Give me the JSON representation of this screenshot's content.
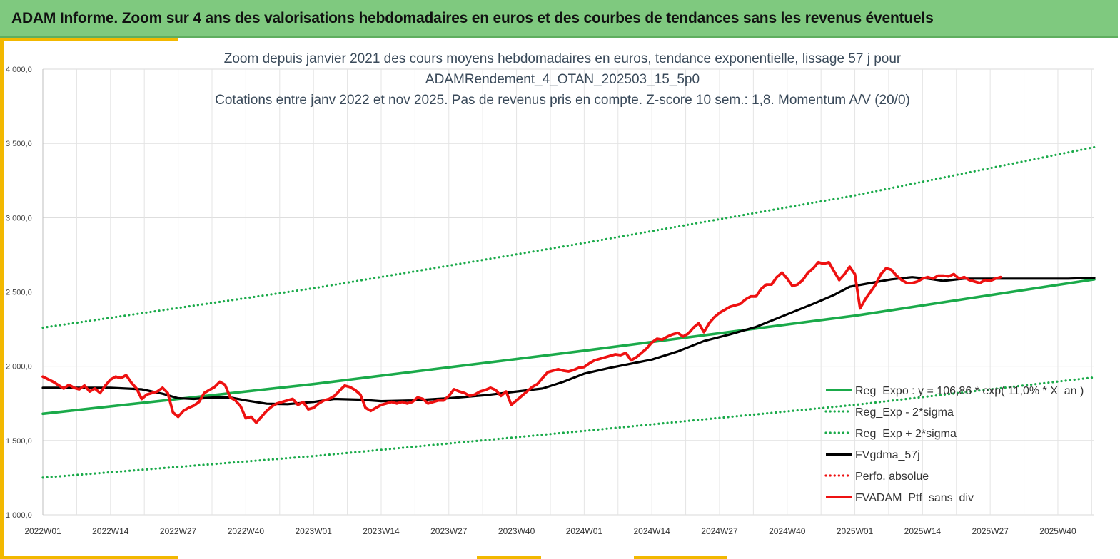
{
  "header": {
    "title": "ADAM Informe. Zoom sur 4 ans des valorisations hebdomadaires en euros et des courbes de tendances sans les revenus éventuels"
  },
  "colors": {
    "header_bg": "#7fc97f",
    "accent": "#f2b800",
    "green": "#1aaa4a",
    "red": "#ee1111",
    "black": "#000000"
  },
  "chart_data": {
    "type": "line",
    "title_lines": [
      "Zoom depuis janvier 2021 des cours moyens hebdomadaires  en euros, tendance exponentielle, lissage 57 j pour",
      "ADAMRendement_4_OTAN_202503_15_5p0",
      "Cotations entre janv 2022 et nov 2025. Pas de revenus pris en compte. Z-score 10 sem.: 1,8. Momentum A/V (20/0)"
    ],
    "ylim": [
      1000,
      4000
    ],
    "yticks": [
      1000,
      1500,
      2000,
      2500,
      3000,
      3500,
      4000
    ],
    "ytick_labels": [
      "1 000,0",
      "1 500,0",
      "2 000,0",
      "2 500,0",
      "3 000,0",
      "3 500,0",
      "4 000,0"
    ],
    "x_range_weeks": [
      1,
      203
    ],
    "xticks": [
      1,
      14,
      27,
      40,
      53,
      66,
      79,
      92,
      105,
      118,
      131,
      144,
      157,
      170,
      183,
      196
    ],
    "xtick_labels": [
      "2022W01",
      "2022W14",
      "2022W27",
      "2022W40",
      "2023W01",
      "2023W14",
      "2023W27",
      "2023W40",
      "2024W01",
      "2024W14",
      "2024W27",
      "2024W40",
      "2025W01",
      "2025W14",
      "2025W27",
      "2025W40"
    ],
    "grid": true,
    "legend_position": "bottom-right",
    "series": [
      {
        "name": "Reg_Expo : y = 106,86 * exp( 11,0% *  X_an )",
        "style": "solid",
        "color": "#1aaa4a",
        "points": [
          [
            1,
            1680
          ],
          [
            53,
            1880
          ],
          [
            105,
            2105
          ],
          [
            157,
            2340
          ],
          [
            203,
            2585
          ]
        ]
      },
      {
        "name": "Reg_Exp - 2*sigma",
        "style": "dotted",
        "color": "#1aaa4a",
        "points": [
          [
            1,
            1250
          ],
          [
            53,
            1395
          ],
          [
            105,
            1565
          ],
          [
            157,
            1740
          ],
          [
            203,
            1925
          ]
        ]
      },
      {
        "name": "Reg_Exp + 2*sigma",
        "style": "dotted",
        "color": "#1aaa4a",
        "points": [
          [
            1,
            2260
          ],
          [
            53,
            2525
          ],
          [
            105,
            2830
          ],
          [
            157,
            3150
          ],
          [
            203,
            3475
          ]
        ]
      },
      {
        "name": "FVgdma_57j",
        "style": "solid",
        "color": "#000000",
        "points": [
          [
            1,
            1855
          ],
          [
            8,
            1855
          ],
          [
            14,
            1855
          ],
          [
            20,
            1845
          ],
          [
            24,
            1815
          ],
          [
            27,
            1785
          ],
          [
            30,
            1780
          ],
          [
            34,
            1790
          ],
          [
            37,
            1790
          ],
          [
            40,
            1770
          ],
          [
            44,
            1748
          ],
          [
            48,
            1745
          ],
          [
            53,
            1760
          ],
          [
            57,
            1780
          ],
          [
            62,
            1775
          ],
          [
            66,
            1765
          ],
          [
            72,
            1770
          ],
          [
            79,
            1785
          ],
          [
            86,
            1805
          ],
          [
            92,
            1830
          ],
          [
            97,
            1850
          ],
          [
            101,
            1895
          ],
          [
            105,
            1950
          ],
          [
            110,
            1990
          ],
          [
            118,
            2045
          ],
          [
            123,
            2100
          ],
          [
            128,
            2170
          ],
          [
            133,
            2215
          ],
          [
            138,
            2265
          ],
          [
            144,
            2350
          ],
          [
            149,
            2420
          ],
          [
            153,
            2480
          ],
          [
            156,
            2535
          ],
          [
            160,
            2560
          ],
          [
            164,
            2585
          ],
          [
            168,
            2600
          ],
          [
            171,
            2590
          ],
          [
            174,
            2575
          ],
          [
            178,
            2590
          ],
          [
            185,
            2590
          ],
          [
            192,
            2590
          ],
          [
            198,
            2590
          ],
          [
            203,
            2595
          ]
        ]
      },
      {
        "name": "Perfo. absolue",
        "style": "dotted",
        "color": "#ee1111",
        "points": []
      },
      {
        "name": "FVADAM_Ptf_sans_div",
        "style": "solid",
        "color": "#ee1111",
        "points": [
          [
            1,
            1930
          ],
          [
            3,
            1895
          ],
          [
            5,
            1850
          ],
          [
            6,
            1875
          ],
          [
            7,
            1855
          ],
          [
            8,
            1845
          ],
          [
            9,
            1870
          ],
          [
            10,
            1830
          ],
          [
            11,
            1850
          ],
          [
            12,
            1820
          ],
          [
            13,
            1870
          ],
          [
            14,
            1910
          ],
          [
            15,
            1930
          ],
          [
            16,
            1920
          ],
          [
            17,
            1940
          ],
          [
            18,
            1890
          ],
          [
            19,
            1850
          ],
          [
            20,
            1780
          ],
          [
            21,
            1810
          ],
          [
            22,
            1820
          ],
          [
            23,
            1830
          ],
          [
            24,
            1855
          ],
          [
            25,
            1820
          ],
          [
            26,
            1690
          ],
          [
            27,
            1660
          ],
          [
            28,
            1700
          ],
          [
            29,
            1720
          ],
          [
            30,
            1735
          ],
          [
            31,
            1760
          ],
          [
            32,
            1820
          ],
          [
            33,
            1840
          ],
          [
            34,
            1860
          ],
          [
            35,
            1895
          ],
          [
            36,
            1875
          ],
          [
            37,
            1790
          ],
          [
            38,
            1770
          ],
          [
            39,
            1730
          ],
          [
            40,
            1650
          ],
          [
            41,
            1660
          ],
          [
            42,
            1620
          ],
          [
            43,
            1660
          ],
          [
            44,
            1700
          ],
          [
            45,
            1730
          ],
          [
            46,
            1750
          ],
          [
            47,
            1760
          ],
          [
            48,
            1770
          ],
          [
            49,
            1780
          ],
          [
            50,
            1740
          ],
          [
            51,
            1760
          ],
          [
            52,
            1710
          ],
          [
            53,
            1720
          ],
          [
            54,
            1750
          ],
          [
            55,
            1770
          ],
          [
            56,
            1780
          ],
          [
            57,
            1800
          ],
          [
            58,
            1835
          ],
          [
            59,
            1870
          ],
          [
            60,
            1860
          ],
          [
            61,
            1840
          ],
          [
            62,
            1810
          ],
          [
            63,
            1720
          ],
          [
            64,
            1700
          ],
          [
            65,
            1720
          ],
          [
            66,
            1740
          ],
          [
            67,
            1750
          ],
          [
            68,
            1760
          ],
          [
            69,
            1750
          ],
          [
            70,
            1760
          ],
          [
            71,
            1750
          ],
          [
            72,
            1760
          ],
          [
            73,
            1790
          ],
          [
            74,
            1780
          ],
          [
            75,
            1750
          ],
          [
            76,
            1760
          ],
          [
            77,
            1770
          ],
          [
            78,
            1770
          ],
          [
            79,
            1800
          ],
          [
            80,
            1845
          ],
          [
            81,
            1830
          ],
          [
            82,
            1820
          ],
          [
            83,
            1800
          ],
          [
            84,
            1810
          ],
          [
            85,
            1830
          ],
          [
            86,
            1840
          ],
          [
            87,
            1855
          ],
          [
            88,
            1840
          ],
          [
            89,
            1800
          ],
          [
            90,
            1830
          ],
          [
            91,
            1740
          ],
          [
            92,
            1770
          ],
          [
            93,
            1800
          ],
          [
            94,
            1830
          ],
          [
            95,
            1860
          ],
          [
            96,
            1880
          ],
          [
            97,
            1920
          ],
          [
            98,
            1960
          ],
          [
            99,
            1970
          ],
          [
            100,
            1980
          ],
          [
            101,
            1970
          ],
          [
            102,
            1965
          ],
          [
            103,
            1975
          ],
          [
            104,
            1990
          ],
          [
            105,
            1995
          ],
          [
            106,
            2020
          ],
          [
            107,
            2040
          ],
          [
            108,
            2050
          ],
          [
            109,
            2060
          ],
          [
            110,
            2070
          ],
          [
            111,
            2080
          ],
          [
            112,
            2075
          ],
          [
            113,
            2090
          ],
          [
            114,
            2040
          ],
          [
            115,
            2060
          ],
          [
            116,
            2090
          ],
          [
            117,
            2120
          ],
          [
            118,
            2160
          ],
          [
            119,
            2185
          ],
          [
            120,
            2180
          ],
          [
            121,
            2200
          ],
          [
            122,
            2215
          ],
          [
            123,
            2225
          ],
          [
            124,
            2200
          ],
          [
            125,
            2220
          ],
          [
            126,
            2260
          ],
          [
            127,
            2290
          ],
          [
            128,
            2230
          ],
          [
            129,
            2290
          ],
          [
            130,
            2330
          ],
          [
            131,
            2360
          ],
          [
            132,
            2380
          ],
          [
            133,
            2400
          ],
          [
            134,
            2410
          ],
          [
            135,
            2420
          ],
          [
            136,
            2450
          ],
          [
            137,
            2470
          ],
          [
            138,
            2470
          ],
          [
            139,
            2520
          ],
          [
            140,
            2550
          ],
          [
            141,
            2550
          ],
          [
            142,
            2600
          ],
          [
            143,
            2630
          ],
          [
            144,
            2590
          ],
          [
            145,
            2540
          ],
          [
            146,
            2550
          ],
          [
            147,
            2580
          ],
          [
            148,
            2630
          ],
          [
            149,
            2660
          ],
          [
            150,
            2700
          ],
          [
            151,
            2690
          ],
          [
            152,
            2700
          ],
          [
            153,
            2640
          ],
          [
            154,
            2580
          ],
          [
            155,
            2620
          ],
          [
            156,
            2670
          ],
          [
            157,
            2620
          ],
          [
            158,
            2390
          ],
          [
            159,
            2450
          ],
          [
            160,
            2500
          ],
          [
            161,
            2550
          ],
          [
            162,
            2620
          ],
          [
            163,
            2660
          ],
          [
            164,
            2650
          ],
          [
            165,
            2610
          ],
          [
            166,
            2580
          ],
          [
            167,
            2560
          ],
          [
            168,
            2560
          ],
          [
            169,
            2570
          ],
          [
            170,
            2590
          ],
          [
            171,
            2600
          ],
          [
            172,
            2590
          ],
          [
            173,
            2610
          ],
          [
            174,
            2610
          ],
          [
            175,
            2605
          ],
          [
            176,
            2620
          ],
          [
            177,
            2590
          ],
          [
            178,
            2600
          ],
          [
            179,
            2580
          ],
          [
            180,
            2570
          ],
          [
            181,
            2560
          ],
          [
            182,
            2580
          ],
          [
            183,
            2575
          ],
          [
            184,
            2590
          ],
          [
            185,
            2600
          ]
        ]
      }
    ]
  }
}
